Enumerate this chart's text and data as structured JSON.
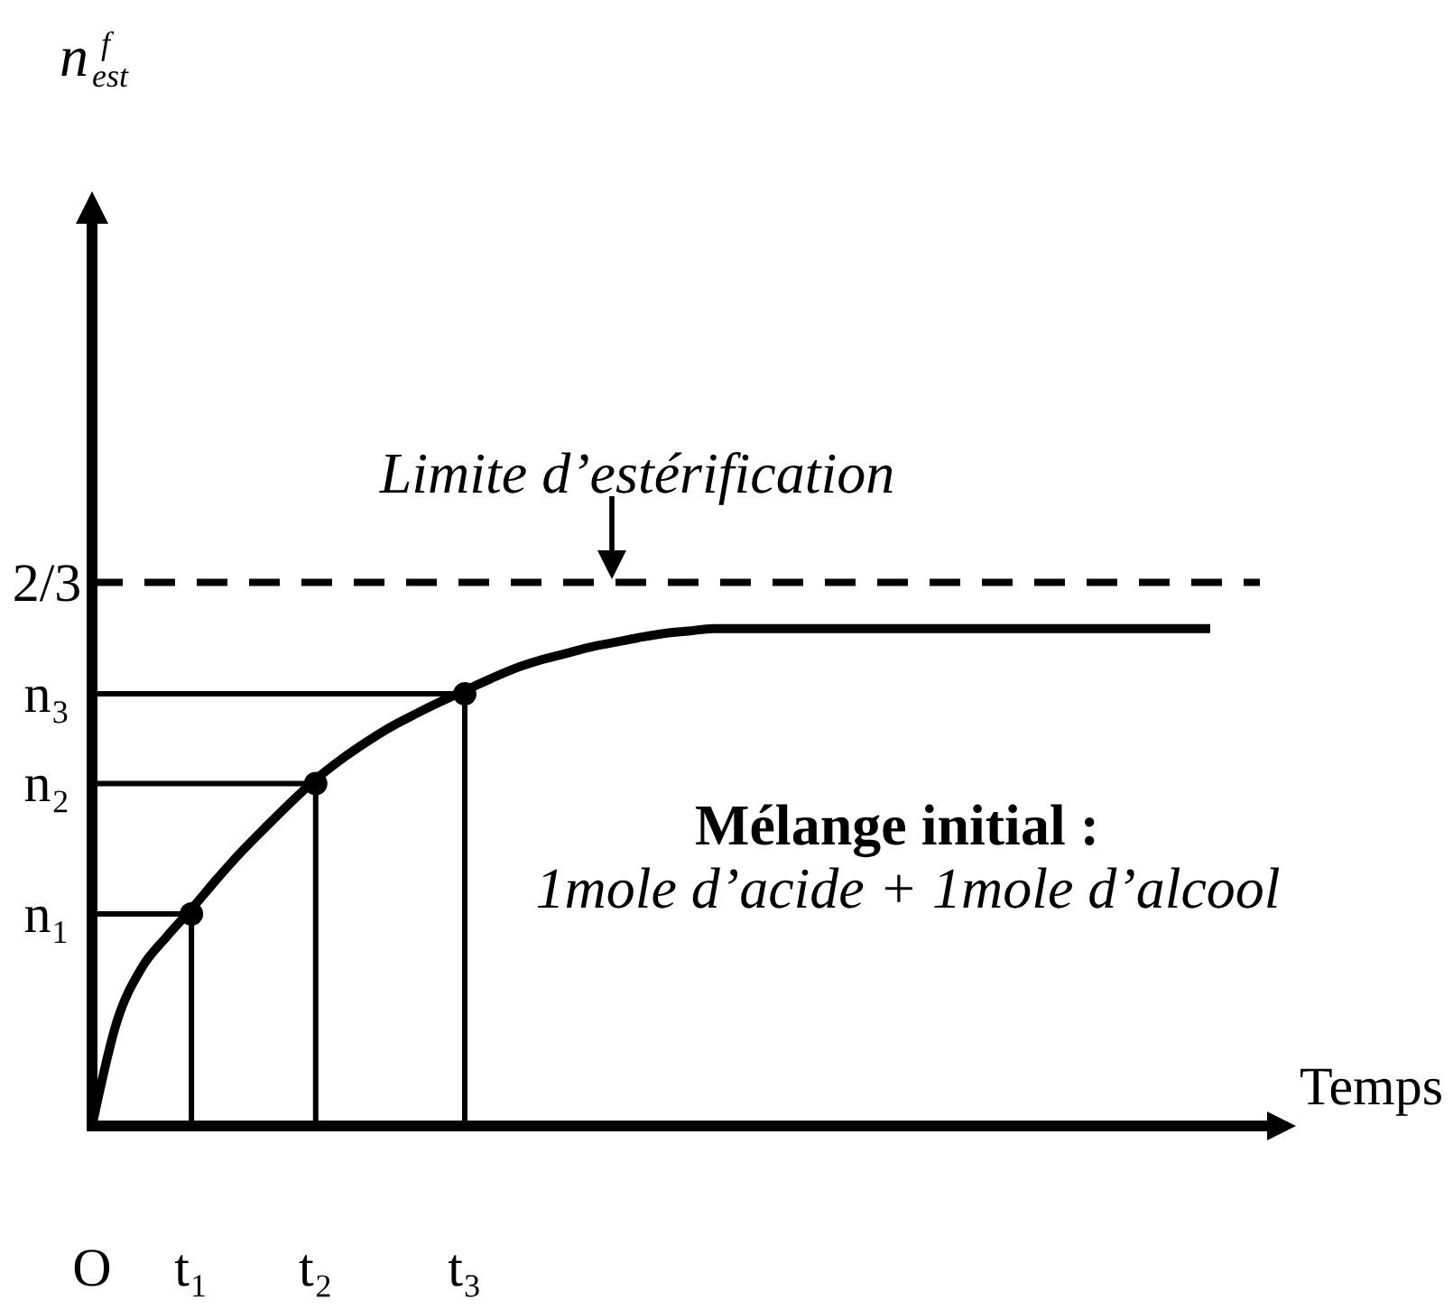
{
  "chart_data": {
    "type": "line",
    "marker": "none",
    "xlabel": "Temps",
    "categories": [
      "O",
      null,
      null,
      null,
      "t₁",
      null,
      null,
      null,
      null,
      "t₂",
      null,
      null,
      null,
      null,
      null,
      "t₃",
      null,
      null,
      null,
      null,
      null,
      null,
      null,
      null,
      null,
      null,
      null,
      null,
      null,
      null,
      null,
      null,
      null,
      null,
      null,
      null,
      null,
      null,
      null,
      null,
      null,
      null,
      null,
      null,
      null,
      null,
      null,
      null
    ],
    "ylim": [
      0,
      1.1
    ],
    "annotations": [
      "Limite d’estérification",
      "Mélange initial :",
      "1mole d’acide + 1mole d’alcool",
      "n$^{f}$$_{est}$"
    ],
    "series": [
      {
        "color": "#000000",
        "values": [
          0,
          0.128,
          0.194,
          0.232,
          0.266,
          0.302,
          0.336,
          0.367,
          0.397,
          0.425,
          0.449,
          0.47,
          0.489,
          0.505,
          0.52,
          0.534,
          0.548,
          0.561,
          0.571,
          0.579,
          0.587,
          0.593,
          0.599,
          0.604,
          0.607,
          0.61,
          0.61,
          0.61,
          0.61,
          0.61,
          0.61,
          0.61,
          0.61,
          0.61,
          0.61,
          0.61,
          0.61,
          0.61,
          0.61,
          0.61,
          0.61,
          0.61,
          0.61,
          0.61,
          0.61,
          0.61,
          null,
          null
        ]
      },
      {
        "color": "#000000",
        "line_style": "dashed",
        "values": [
          0.6667,
          0.6667,
          0.6667,
          0.6667,
          0.6667,
          0.6667,
          0.6667,
          0.6667,
          0.6667,
          0.6667,
          0.6667,
          0.6667,
          0.6667,
          0.6667,
          0.6667,
          0.6667,
          0.6667,
          0.6667,
          0.6667,
          0.6667,
          0.6667,
          0.6667,
          0.6667,
          0.6667,
          0.6667,
          0.6667,
          0.6667,
          0.6667,
          0.6667,
          0.6667,
          0.6667,
          0.6667,
          0.6667,
          0.6667,
          0.6667,
          0.6667,
          0.6667,
          0.6667,
          0.6667,
          0.6667,
          0.6667,
          0.6667,
          0.6667,
          0.6667,
          0.6667,
          0.6667,
          0.6667,
          0.6667
        ],
        "value_labels": [
          "2/3",
          null,
          null,
          null,
          null,
          null,
          null,
          null,
          null,
          null,
          null,
          null,
          null,
          null,
          null,
          null,
          null,
          null,
          null,
          null,
          null,
          null,
          null,
          null,
          null,
          null,
          null,
          null,
          null,
          null,
          null,
          null,
          null,
          null,
          null,
          null,
          null,
          null,
          null,
          null,
          null,
          null,
          null,
          null,
          null,
          null,
          null,
          null
        ]
      },
      {
        "color": "#000000",
        "values": [
          0.26,
          0.26,
          0.26,
          0.26,
          0.26,
          null,
          null,
          null,
          null,
          null,
          null,
          null,
          null,
          null,
          null,
          null,
          null,
          null,
          null,
          null,
          null,
          null,
          null,
          null,
          null,
          null,
          null,
          null,
          null,
          null,
          null,
          null,
          null,
          null,
          null,
          null,
          null,
          null,
          null,
          null,
          null,
          null,
          null,
          null,
          null,
          null,
          null,
          null
        ],
        "value_labels": [
          "n₁",
          null,
          null,
          null,
          null,
          null,
          null,
          null,
          null,
          null,
          null,
          null,
          null,
          null,
          null,
          null,
          null,
          null,
          null,
          null,
          null,
          null,
          null,
          null,
          null,
          null,
          null,
          null,
          null,
          null,
          null,
          null,
          null,
          null,
          null,
          null,
          null,
          null,
          null,
          null,
          null,
          null,
          null,
          null,
          null,
          null,
          null,
          null
        ]
      },
      {
        "color": "#000000",
        "values": [
          0.42,
          0.42,
          0.42,
          0.42,
          0.42,
          0.42,
          0.42,
          0.42,
          0.42,
          0.42,
          null,
          null,
          null,
          null,
          null,
          null,
          null,
          null,
          null,
          null,
          null,
          null,
          null,
          null,
          null,
          null,
          null,
          null,
          null,
          null,
          null,
          null,
          null,
          null,
          null,
          null,
          null,
          null,
          null,
          null,
          null,
          null,
          null,
          null,
          null,
          null,
          null,
          null
        ],
        "value_labels": [
          "n₂",
          null,
          null,
          null,
          null,
          null,
          null,
          null,
          null,
          null,
          null,
          null,
          null,
          null,
          null,
          null,
          null,
          null,
          null,
          null,
          null,
          null,
          null,
          null,
          null,
          null,
          null,
          null,
          null,
          null,
          null,
          null,
          null,
          null,
          null,
          null,
          null,
          null,
          null,
          null,
          null,
          null,
          null,
          null,
          null,
          null,
          null,
          null
        ]
      },
      {
        "color": "#000000",
        "values": [
          0.53,
          0.53,
          0.53,
          0.53,
          0.53,
          0.53,
          0.53,
          0.53,
          0.53,
          0.53,
          0.53,
          0.53,
          0.53,
          0.53,
          0.53,
          0.53,
          null,
          null,
          null,
          null,
          null,
          null,
          null,
          null,
          null,
          null,
          null,
          null,
          null,
          null,
          null,
          null,
          null,
          null,
          null,
          null,
          null,
          null,
          null,
          null,
          null,
          null,
          null,
          null,
          null,
          null,
          null,
          null
        ],
        "value_labels": [
          "n₃",
          null,
          null,
          null,
          null,
          null,
          null,
          null,
          null,
          null,
          null,
          null,
          null,
          null,
          null,
          null,
          null,
          null,
          null,
          null,
          null,
          null,
          null,
          null,
          null,
          null,
          null,
          null,
          null,
          null,
          null,
          null,
          null,
          null,
          null,
          null,
          null,
          null,
          null,
          null,
          null,
          null,
          null,
          null,
          null,
          null,
          null,
          null
        ]
      },
      {
        "type": "lollipop",
        "color": "#000000",
        "marker": "circle",
        "values": [
          null,
          null,
          null,
          null,
          0.26,
          null,
          null,
          null,
          null,
          0.42,
          null,
          null,
          null,
          null,
          null,
          0.53,
          null,
          null,
          null,
          null,
          null,
          null,
          null,
          null,
          null,
          null,
          null,
          null,
          null,
          null,
          null,
          null,
          null,
          null,
          null,
          null,
          null,
          null,
          null,
          null,
          null,
          null,
          null,
          null,
          null,
          null,
          null,
          null
        ]
      }
    ]
  }
}
